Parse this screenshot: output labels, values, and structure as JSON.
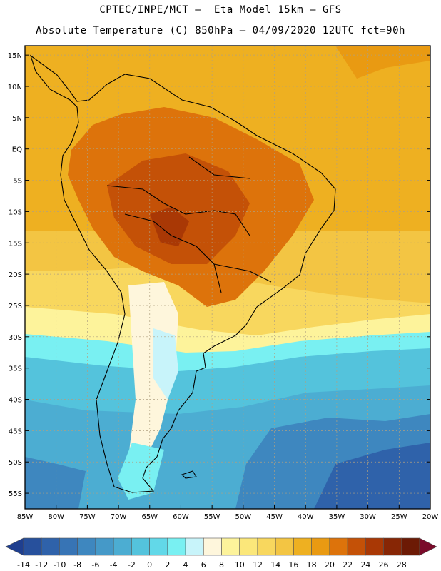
{
  "header": {
    "line1": "CPTEC/INPE/MCT –  Eta Model 15km – GFS",
    "line2": "Absolute Temperature (C) 850hPa – 04/09/2020 12UTC fct=90h"
  },
  "map": {
    "lat_labels": [
      "15N",
      "10N",
      "5N",
      "EQ",
      "5S",
      "10S",
      "15S",
      "20S",
      "25S",
      "30S",
      "35S",
      "40S",
      "45S",
      "50S",
      "55S"
    ],
    "lat_values": [
      15,
      10,
      5,
      0,
      -5,
      -10,
      -15,
      -20,
      -25,
      -30,
      -35,
      -40,
      -45,
      -50,
      -55
    ],
    "lon_labels": [
      "85W",
      "80W",
      "75W",
      "70W",
      "65W",
      "60W",
      "55W",
      "50W",
      "45W",
      "40W",
      "35W",
      "30W",
      "25W",
      "20W"
    ],
    "lon_values": [
      -85,
      -80,
      -75,
      -70,
      -65,
      -60,
      -55,
      -50,
      -45,
      -40,
      -35,
      -30,
      -25,
      -20
    ],
    "extent": {
      "lon_min": -85,
      "lon_max": -20,
      "lat_min": -57.5,
      "lat_max": 16.5
    }
  },
  "colorbar": {
    "labels": [
      "-14",
      "-12",
      "-10",
      "-8",
      "-6",
      "-4",
      "-2",
      "0",
      "2",
      "4",
      "6",
      "8",
      "10",
      "12",
      "14",
      "16",
      "18",
      "20",
      "22",
      "24",
      "26",
      "28"
    ],
    "colors": [
      "#1f3f8f",
      "#27509c",
      "#2f62aa",
      "#3774b5",
      "#3e87bf",
      "#4599c8",
      "#4cadd2",
      "#54c3dc",
      "#62d8e8",
      "#79f0f2",
      "#c8f4fa",
      "#fef6dc",
      "#fdf39b",
      "#fbe77a",
      "#f8d75e",
      "#f3c543",
      "#eeb021",
      "#e99a12",
      "#dd730b",
      "#c45107",
      "#a93805",
      "#872605",
      "#6c1a05",
      "#7a0a2a"
    ]
  }
}
